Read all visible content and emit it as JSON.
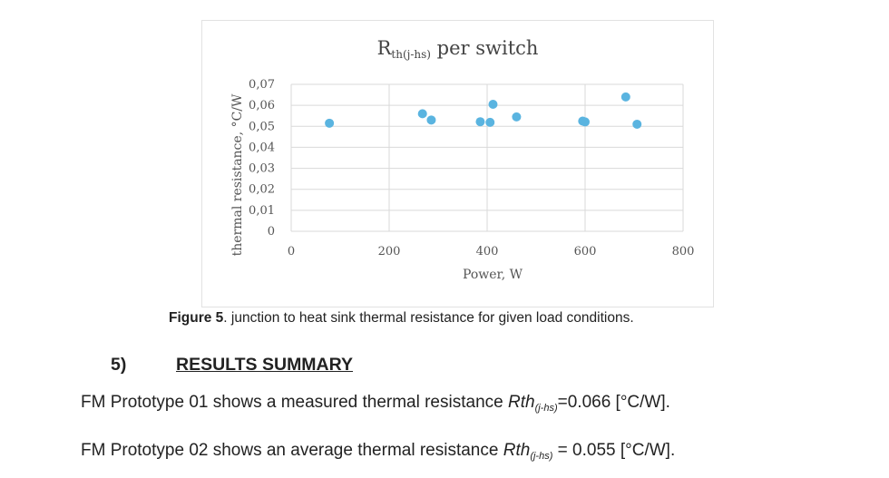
{
  "figure": {
    "caption_label": "Figure 5",
    "caption_text": ". junction to heat sink thermal resistance for given load conditions."
  },
  "chart_data": {
    "type": "scatter",
    "title_main": "R",
    "title_sub": "th(j-hs)",
    "title_rest": " per switch",
    "xlabel": "Power, W",
    "ylabel": "thermal resistance, °C/W",
    "xlim": [
      0,
      800
    ],
    "ylim": [
      0,
      0.07
    ],
    "x_ticks": [
      "0",
      "200",
      "400",
      "600",
      "800"
    ],
    "y_ticks": [
      "0",
      "0,01",
      "0,02",
      "0,03",
      "0,04",
      "0,05",
      "0,06",
      "0,07"
    ],
    "grid": true,
    "marker_color": "#5ab4e0",
    "series": [
      {
        "points": [
          {
            "x": 78,
            "y": 0.0515
          },
          {
            "x": 268,
            "y": 0.056
          },
          {
            "x": 286,
            "y": 0.053
          },
          {
            "x": 386,
            "y": 0.0522
          },
          {
            "x": 406,
            "y": 0.0519
          },
          {
            "x": 412,
            "y": 0.0605
          },
          {
            "x": 460,
            "y": 0.0545
          },
          {
            "x": 595,
            "y": 0.0525
          },
          {
            "x": 600,
            "y": 0.0521
          },
          {
            "x": 683,
            "y": 0.064
          },
          {
            "x": 706,
            "y": 0.051
          }
        ]
      }
    ]
  },
  "section": {
    "number": "5)",
    "heading": "RESULTS SUMMARY"
  },
  "results": [
    {
      "prefix": "FM Prototype 01 shows a measured thermal resistance ",
      "symbol": "Rth",
      "subscript": "(j-hs)",
      "suffix": "=0.066 [°C/W]."
    },
    {
      "prefix": "FM Prototype 02 shows an average thermal resistance ",
      "symbol": "Rth",
      "subscript": "(j-hs)",
      "suffix": " = 0.055 [°C/W]."
    }
  ]
}
